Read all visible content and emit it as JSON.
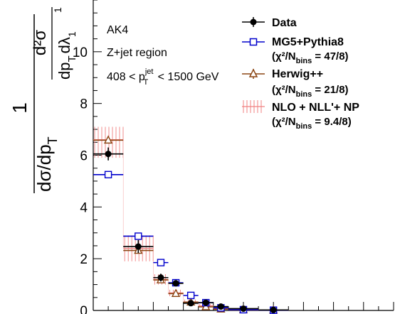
{
  "chart_data": {
    "type": "scatter",
    "ylabel_parts": {
      "numer_one": "1",
      "numer_d2sigma": "d²σ",
      "denom_left": "dσ/dp",
      "denom_left_sub": "T",
      "denom_right": "dp",
      "denom_right_sub": "T",
      "denom_right_tail": "dλ",
      "denom_right_tail_sub": "1",
      "denom_right_tail_sup": "1"
    },
    "ylim": [
      0,
      12
    ],
    "xlim": [
      0,
      1
    ],
    "yticks": [
      0,
      2,
      4,
      6,
      8,
      10
    ],
    "text_labels": {
      "algo": "AK4",
      "region": "Z+jet region",
      "cut_left": "408 < p",
      "cut_sup": "jet",
      "cut_sub": "T",
      "cut_right": " < 1500 GeV"
    },
    "legend": {
      "data": "Data",
      "mg5": "MG5+Pythia8",
      "mg5_chi": "(χ²/N",
      "mg5_chi_sub": "bins",
      "mg5_chi_val": " = 47/8)",
      "herwig": "Herwig++",
      "herwig_chi": "(χ²/N",
      "herwig_chi_sub": "bins",
      "herwig_chi_val": " = 21/8)",
      "nlo": "NLO + NLL'+ NP",
      "nlo_chi": "(χ²/N",
      "nlo_chi_sub": "bins",
      "nlo_chi_val": " = 9.4/8)"
    },
    "bins": [
      [
        0.0,
        0.1
      ],
      [
        0.1,
        0.2
      ],
      [
        0.2,
        0.25
      ],
      [
        0.25,
        0.3
      ],
      [
        0.3,
        0.35
      ],
      [
        0.35,
        0.4
      ],
      [
        0.4,
        0.45
      ],
      [
        0.45,
        0.55
      ],
      [
        0.55,
        0.65
      ]
    ],
    "series": [
      {
        "key": "data",
        "name": "Data",
        "color": "#000000",
        "marker": "circle",
        "values": [
          6.05,
          2.47,
          1.27,
          1.05,
          0.28,
          0.3,
          0.15,
          0.07,
          0.02
        ],
        "errors": [
          0.25,
          0.25,
          0.15,
          0.12,
          0.06,
          0.06,
          0.05,
          0.04,
          0.02
        ]
      },
      {
        "key": "mg5",
        "name": "MG5+Pythia8",
        "color": "#0000cc",
        "marker": "open-square",
        "values": [
          5.25,
          2.87,
          1.85,
          1.07,
          0.58,
          0.3,
          0.1,
          0.03,
          0.01
        ],
        "errors": [
          0.03,
          0.03,
          0.03,
          0.03,
          0.02,
          0.02,
          0.01,
          0.01,
          0.01
        ]
      },
      {
        "key": "herwig",
        "name": "Herwig++",
        "color": "#8b4513",
        "marker": "open-triangle",
        "values": [
          6.58,
          2.32,
          1.18,
          0.65,
          0.32,
          0.14,
          0.05,
          0.02,
          0.01
        ],
        "errors": [
          0.03,
          0.03,
          0.03,
          0.03,
          0.02,
          0.02,
          0.01,
          0.01,
          0.01
        ]
      },
      {
        "key": "nlo",
        "name": "NLO + NLL'+ NP",
        "color": "#f08080",
        "marker": "hatched-band",
        "values": [
          6.6,
          2.4,
          1.2,
          0.68,
          0.33,
          0.18,
          0.08,
          0.04,
          0.01
        ],
        "band_low": [
          5.9,
          1.9,
          1.0,
          0.55,
          0.25,
          0.12,
          0.04,
          0.02,
          0.0
        ],
        "band_high": [
          7.1,
          2.9,
          1.4,
          0.8,
          0.42,
          0.25,
          0.12,
          0.06,
          0.02
        ]
      }
    ],
    "colors": {
      "axis": "#000000",
      "data": "#000000",
      "mg5": "#0000cc",
      "herwig": "#8b4513",
      "nlo": "#f08080"
    }
  }
}
